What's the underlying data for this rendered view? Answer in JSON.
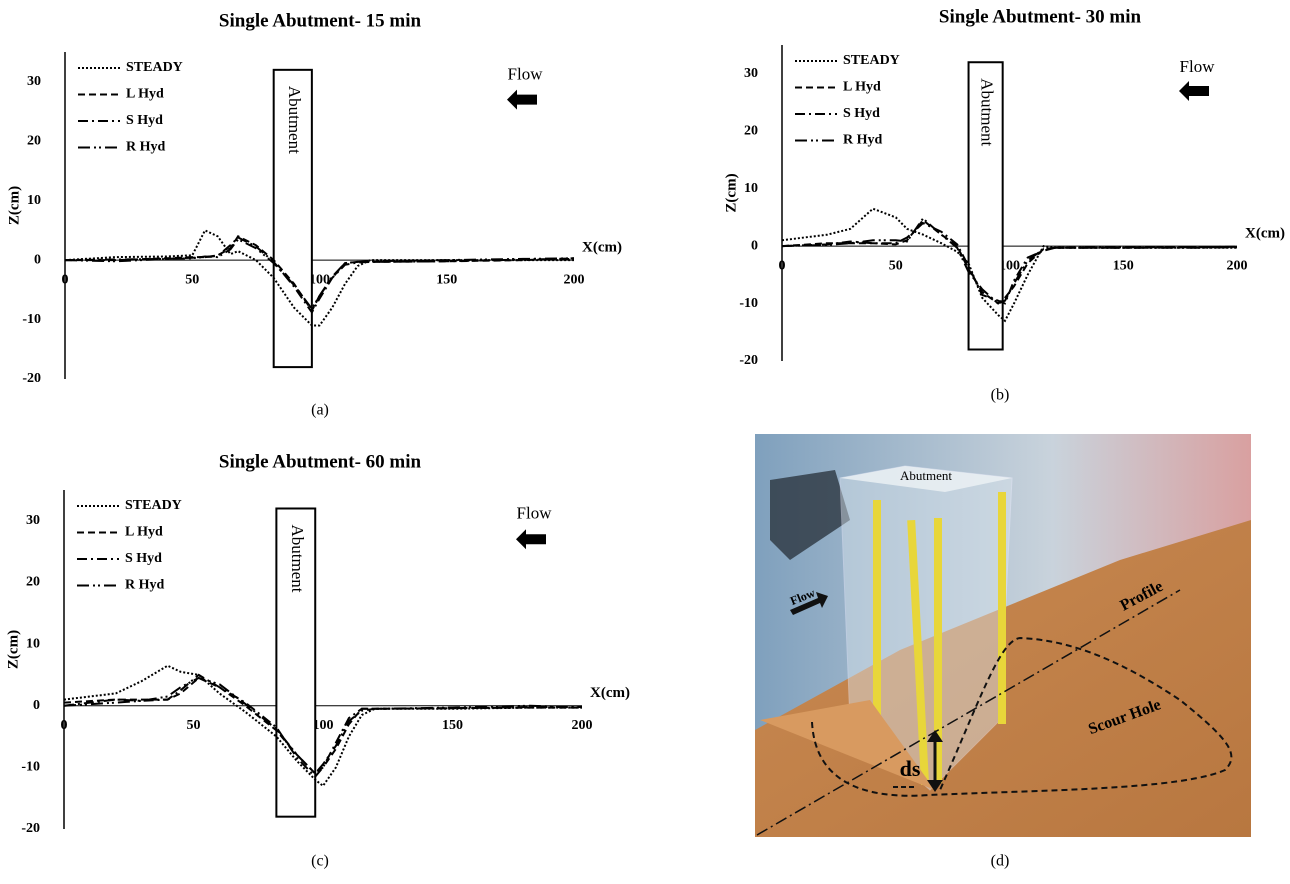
{
  "chart_data": [
    {
      "type": "line",
      "title": "Single Abutment- 15 min",
      "caption": "(a)",
      "x_label": "X(cm)",
      "y_label": "Z(cm)",
      "xlim": [
        0,
        200
      ],
      "xticks": [
        0,
        50,
        100,
        150,
        200
      ],
      "ylim": [
        -20,
        35
      ],
      "yticks": [
        -20,
        -10,
        0,
        10,
        20,
        30
      ],
      "grid": false,
      "legend": "upper left",
      "abutment": {
        "label": "Abutment",
        "x": [
          82,
          97
        ],
        "z": [
          -18,
          32
        ]
      },
      "flow_label": "Flow",
      "x": [
        0,
        20,
        40,
        50,
        55,
        60,
        65,
        68,
        75,
        82,
        90,
        97,
        100,
        105,
        110,
        115,
        120,
        150,
        180,
        200
      ],
      "series": [
        {
          "name": "STEADY",
          "color": "#000000",
          "dash": "dotted",
          "values": [
            0,
            0.5,
            0.6,
            0.8,
            5,
            4,
            1,
            1.5,
            0,
            -3,
            -8,
            -11,
            -11,
            -8,
            -4,
            -1,
            0,
            0,
            0,
            0
          ]
        },
        {
          "name": "L Hyd",
          "color": "#000000",
          "dash": "dashed",
          "values": [
            0,
            0,
            0.3,
            0.5,
            0.5,
            0.8,
            2,
            4,
            2.5,
            0,
            -4,
            -8.5,
            -6,
            -3,
            -0.5,
            -0.3,
            -0.3,
            -0.2,
            0,
            0.3
          ]
        },
        {
          "name": "S Hyd",
          "color": "#000000",
          "dash": "dashdot",
          "values": [
            0,
            0.1,
            0.2,
            0.4,
            0.5,
            0.7,
            2.5,
            3.8,
            2.3,
            -0.3,
            -4.5,
            -8.8,
            -6.5,
            -3,
            -0.8,
            -0.4,
            -0.3,
            -0.2,
            0.1,
            0.2
          ]
        },
        {
          "name": "R Hyd",
          "color": "#000000",
          "dash": "dashdotdot",
          "values": [
            0,
            -0.2,
            0.2,
            0.3,
            0.6,
            0.5,
            1.8,
            3.5,
            2,
            -0.5,
            -4.2,
            -8.2,
            -6,
            -2.8,
            -0.5,
            -0.3,
            -0.2,
            0,
            0.2,
            0.3
          ]
        }
      ]
    },
    {
      "type": "line",
      "title": "Single Abutment- 30 min",
      "caption": "(b)",
      "x_label": "X(cm)",
      "y_label": "Z(cm)",
      "xlim": [
        0,
        200
      ],
      "xticks": [
        0,
        50,
        100,
        150,
        200
      ],
      "ylim": [
        -20,
        35
      ],
      "yticks": [
        -20,
        -10,
        0,
        10,
        20,
        30
      ],
      "grid": false,
      "legend": "upper left",
      "abutment": {
        "label": "Abutment",
        "x": [
          82,
          97
        ],
        "z": [
          -18,
          32
        ]
      },
      "flow_label": "Flow",
      "x": [
        0,
        20,
        30,
        40,
        50,
        55,
        62,
        70,
        77,
        82,
        88,
        95,
        98,
        102,
        108,
        115,
        120,
        150,
        180,
        200
      ],
      "series": [
        {
          "name": "STEADY",
          "color": "#000000",
          "dash": "dotted",
          "values": [
            1,
            2,
            3,
            6.5,
            5,
            3,
            2,
            0.5,
            -1,
            -3,
            -9,
            -12,
            -13,
            -10,
            -5,
            0,
            -0.3,
            -0.3,
            -0.3,
            -0.3
          ]
        },
        {
          "name": "L Hyd",
          "color": "#000000",
          "dash": "dashed",
          "values": [
            0,
            0.5,
            0.5,
            0.5,
            0.3,
            1,
            4.5,
            2,
            0,
            -4,
            -8,
            -10,
            -9,
            -7,
            -3,
            -0.5,
            -0.3,
            -0.3,
            -0.2,
            -0.2
          ]
        },
        {
          "name": "S Hyd",
          "color": "#000000",
          "dash": "dashdot",
          "values": [
            0,
            0.3,
            0.8,
            0.5,
            0.5,
            1.5,
            4,
            2.5,
            0.3,
            -3.5,
            -8.5,
            -9.5,
            -10,
            -6,
            -2,
            -0.8,
            -0.3,
            -0.2,
            -0.2,
            -0.1
          ]
        },
        {
          "name": "R Hyd",
          "color": "#000000",
          "dash": "dashdotdot",
          "values": [
            0,
            0.2,
            0.5,
            1,
            1,
            0.8,
            4.8,
            2,
            -0.3,
            -4.5,
            -7.5,
            -10,
            -9.5,
            -6.5,
            -2.5,
            -0.5,
            -0.3,
            -0.3,
            -0.3,
            -0.2
          ]
        }
      ]
    },
    {
      "type": "line",
      "title": "Single Abutment- 60 min",
      "caption": "(c)",
      "x_label": "X(cm)",
      "y_label": "Z(cm)",
      "xlim": [
        0,
        200
      ],
      "xticks": [
        0,
        50,
        100,
        150,
        200
      ],
      "ylim": [
        -20,
        35
      ],
      "yticks": [
        -20,
        -10,
        0,
        10,
        20,
        30
      ],
      "grid": false,
      "legend": "upper left",
      "abutment": {
        "label": "Abutment",
        "x": [
          82,
          97
        ],
        "z": [
          -18,
          32
        ]
      },
      "flow_label": "Flow",
      "x": [
        0,
        20,
        30,
        40,
        45,
        52,
        60,
        70,
        82,
        90,
        97,
        100,
        105,
        110,
        115,
        120,
        150,
        180,
        200
      ],
      "series": [
        {
          "name": "STEADY",
          "color": "#000000",
          "dash": "dotted",
          "values": [
            1,
            2,
            4,
            6.5,
            5.5,
            5,
            2,
            -1,
            -5,
            -9,
            -12,
            -13,
            -10,
            -5,
            -1.5,
            -0.5,
            -0.5,
            -0.3,
            -0.3
          ]
        },
        {
          "name": "L Hyd",
          "color": "#000000",
          "dash": "dashed",
          "values": [
            0.5,
            1,
            1,
            1,
            2,
            4.5,
            3,
            0,
            -4,
            -8,
            -11,
            -10,
            -7,
            -3,
            -0.5,
            -0.5,
            -0.4,
            -0.3,
            -0.3
          ]
        },
        {
          "name": "S Hyd",
          "color": "#000000",
          "dash": "dashdot",
          "values": [
            0,
            1,
            0.8,
            1,
            2.5,
            5,
            3,
            0.5,
            -3.5,
            -8.5,
            -11.5,
            -10,
            -6,
            -2,
            -0.5,
            -0.5,
            -0.4,
            -0.2,
            -0.2
          ]
        },
        {
          "name": "R Hyd",
          "color": "#000000",
          "dash": "dashdotdot",
          "values": [
            0,
            0.5,
            0.8,
            1.5,
            3,
            4.5,
            3.5,
            0.3,
            -3.8,
            -8,
            -11,
            -9.5,
            -6.5,
            -2.5,
            -0.8,
            -0.5,
            -0.3,
            0,
            -0.3
          ]
        }
      ]
    }
  ],
  "photo": {
    "caption": "(d)",
    "labels": {
      "abutment": "Abutment",
      "flow": "Flow",
      "profile": "Profile",
      "scour_hole": "Scour Hole",
      "ds": "ds"
    }
  }
}
